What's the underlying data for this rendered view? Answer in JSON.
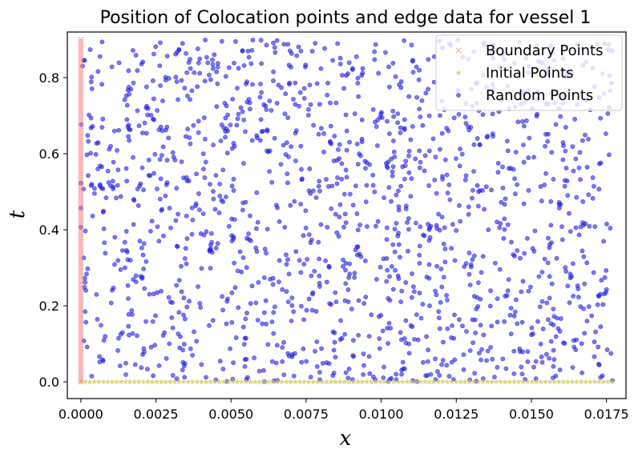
{
  "chart_data": {
    "type": "scatter",
    "title": "Position of Colocation points and edge data for vessel 1",
    "xlabel": "x",
    "ylabel": "t",
    "xlim": [
      -0.00045,
      0.01815
    ],
    "ylim": [
      -0.044,
      0.92
    ],
    "x_ticks": [
      0.0,
      0.0025,
      0.005,
      0.0075,
      0.01,
      0.0125,
      0.015,
      0.0175
    ],
    "x_tick_labels": [
      "0.0000",
      "0.0025",
      "0.0050",
      "0.0075",
      "0.0100",
      "0.0125",
      "0.0150",
      "0.0175"
    ],
    "y_ticks": [
      0.0,
      0.2,
      0.4,
      0.6,
      0.8
    ],
    "y_tick_labels": [
      "0.0",
      "0.2",
      "0.4",
      "0.6",
      "0.8"
    ],
    "grid": false,
    "legend_position": "top-right",
    "series": [
      {
        "name": "Boundary Points",
        "marker": "x",
        "color": "#f08080",
        "x_constant": 0.0,
        "y_range": [
          0.0,
          0.9
        ],
        "count": 150
      },
      {
        "name": "Initial Points",
        "marker": "star",
        "color": "#d4c84a",
        "y_constant": 0.0,
        "x_range": [
          0.0,
          0.0177
        ],
        "count": 120
      },
      {
        "name": "Random Points",
        "marker": "circle",
        "color": "#2020e8",
        "x_range": [
          0.0,
          0.0177
        ],
        "y_range": [
          0.0,
          0.9
        ],
        "count": 1500,
        "distribution": "uniform"
      }
    ]
  }
}
